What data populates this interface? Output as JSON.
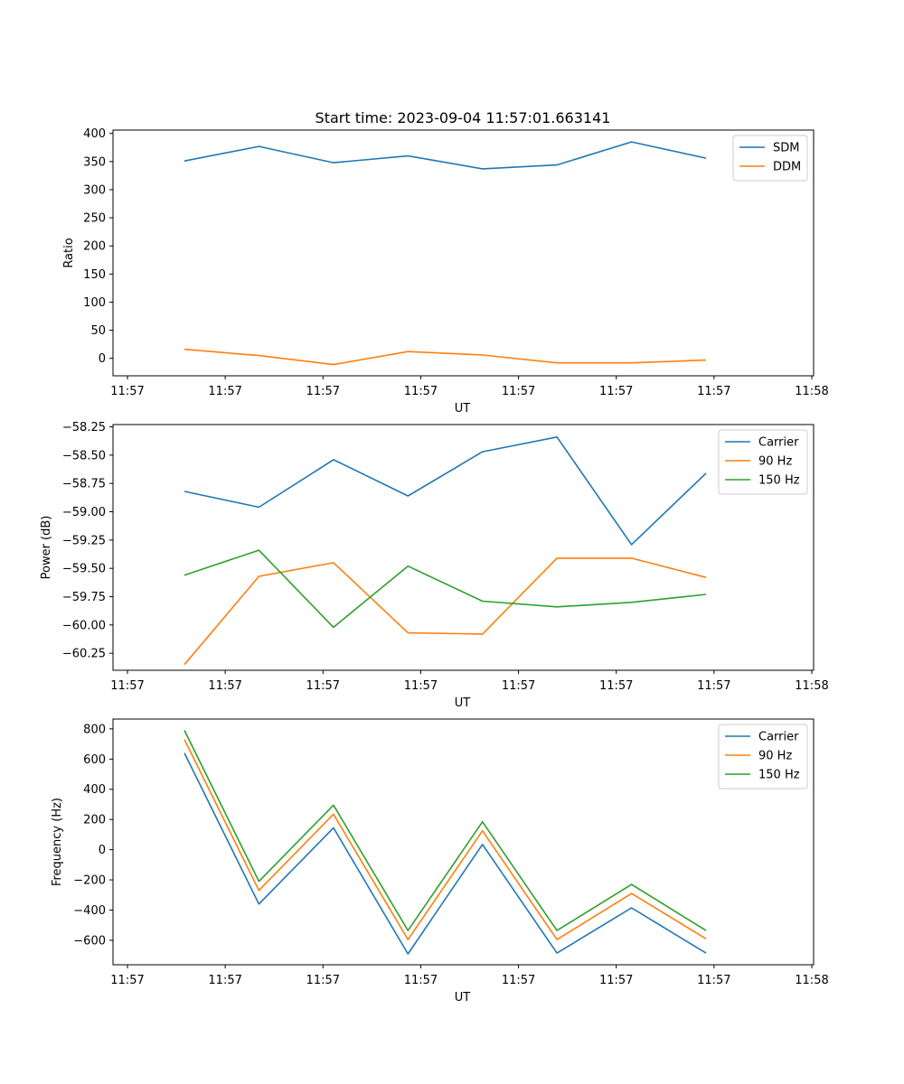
{
  "figure_title": "Start time: 2023-09-04 11:57:01.663141",
  "chart_data": [
    {
      "type": "line",
      "title": "Start time: 2023-09-04 11:57:01.663141",
      "xlabel": "UT",
      "ylabel": "Ratio",
      "x_tick_labels": [
        "11:57",
        "11:57",
        "11:57",
        "11:57",
        "11:57",
        "11:57",
        "11:57",
        "11:58"
      ],
      "x_points": [
        1,
        2,
        3,
        4,
        5,
        6,
        7,
        8
      ],
      "xlim": [
        0.2,
        9.4
      ],
      "x_tick_positions": [
        0.2,
        1.725,
        3.25,
        4.775,
        6.3,
        7.825,
        9.35,
        10.875
      ],
      "ylim": [
        -31,
        406
      ],
      "y_ticks": [
        0,
        50,
        100,
        150,
        200,
        250,
        300,
        350,
        400
      ],
      "legend_position": "top-right",
      "series": [
        {
          "name": "SDM",
          "color": "#1f77b4",
          "values": [
            351,
            377,
            348,
            360,
            337,
            344,
            385,
            356
          ]
        },
        {
          "name": "DDM",
          "color": "#ff7f0e",
          "values": [
            16,
            5,
            -11,
            12,
            6,
            -8,
            -8,
            -3
          ]
        }
      ]
    },
    {
      "type": "line",
      "xlabel": "UT",
      "ylabel": "Power (dB)",
      "x_tick_labels": [
        "11:57",
        "11:57",
        "11:57",
        "11:57",
        "11:57",
        "11:57",
        "11:57",
        "11:58"
      ],
      "x_points": [
        1,
        2,
        3,
        4,
        5,
        6,
        7,
        8
      ],
      "xlim": [
        0.2,
        9.4
      ],
      "x_tick_positions": [
        0.2,
        1.725,
        3.25,
        4.775,
        6.3,
        7.825,
        9.35,
        10.875
      ],
      "ylim": [
        -60.4,
        -58.23
      ],
      "y_ticks": [
        -60.25,
        -60.0,
        -59.75,
        -59.5,
        -59.25,
        -59.0,
        -58.75,
        -58.5,
        -58.25
      ],
      "y_tick_labels": [
        "−60.25",
        "−60.00",
        "−59.75",
        "−59.50",
        "−59.25",
        "−59.00",
        "−58.75",
        "−58.50",
        "−58.25"
      ],
      "legend_position": "top-right",
      "series": [
        {
          "name": "Carrier",
          "color": "#1f77b4",
          "values": [
            -58.82,
            -58.96,
            -58.54,
            -58.86,
            -58.47,
            -58.34,
            -59.29,
            -58.66
          ]
        },
        {
          "name": "90 Hz",
          "color": "#ff7f0e",
          "values": [
            -60.35,
            -59.57,
            -59.45,
            -60.07,
            -60.08,
            -59.41,
            -59.41,
            -59.58
          ]
        },
        {
          "name": "150 Hz",
          "color": "#2ca02c",
          "values": [
            -59.56,
            -59.34,
            -60.02,
            -59.48,
            -59.79,
            -59.84,
            -59.8,
            -59.73
          ]
        }
      ]
    },
    {
      "type": "line",
      "xlabel": "UT",
      "ylabel": "Frequency (Hz)",
      "x_tick_labels": [
        "11:57",
        "11:57",
        "11:57",
        "11:57",
        "11:57",
        "11:57",
        "11:57",
        "11:58"
      ],
      "x_points": [
        1,
        2,
        3,
        4,
        5,
        6,
        7,
        8
      ],
      "xlim": [
        0.2,
        9.4
      ],
      "x_tick_positions": [
        0.2,
        1.725,
        3.25,
        4.775,
        6.3,
        7.825,
        9.35,
        10.875
      ],
      "ylim": [
        -762,
        865
      ],
      "y_ticks": [
        -600,
        -400,
        -200,
        0,
        200,
        400,
        600,
        800
      ],
      "y_tick_labels": [
        "−600",
        "−400",
        "−200",
        "0",
        "200",
        "400",
        "600",
        "800"
      ],
      "legend_position": "top-right",
      "series": [
        {
          "name": "Carrier",
          "color": "#1f77b4",
          "values": [
            640,
            -360,
            145,
            -690,
            35,
            -685,
            -385,
            -685
          ]
        },
        {
          "name": "90 Hz",
          "color": "#ff7f0e",
          "values": [
            730,
            -270,
            235,
            -595,
            125,
            -595,
            -290,
            -590
          ]
        },
        {
          "name": "150 Hz",
          "color": "#2ca02c",
          "values": [
            790,
            -210,
            295,
            -535,
            185,
            -535,
            -230,
            -535
          ]
        }
      ]
    }
  ]
}
